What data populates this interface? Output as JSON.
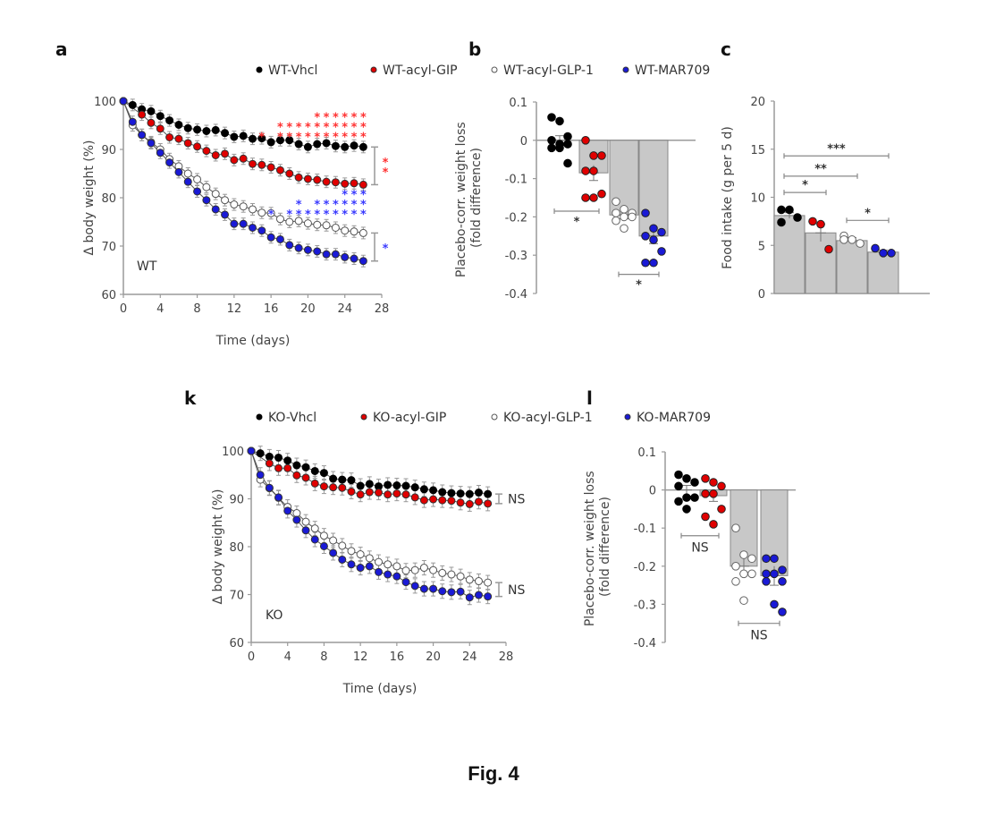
{
  "figure": {
    "caption": "Fig. 4",
    "colors": {
      "vhcl": "#000000",
      "gip": "#e00000",
      "glp1": "#ffffff",
      "mar709": "#1a1ad6",
      "sig_red": "#ff3030",
      "sig_blue": "#3a3aff",
      "bar": "#c8c8c8",
      "axis": "#9a9a9a"
    }
  },
  "chart_data": [
    {
      "id": "a",
      "panel_letter": "a",
      "type": "line",
      "title": "",
      "inset_label": "WT",
      "xlabel": "Time (days)",
      "ylabel": "Δ body weight (%)",
      "xlim": [
        0,
        28
      ],
      "ylim": [
        60,
        100
      ],
      "xticks": [
        "0",
        "4",
        "8",
        "12",
        "16",
        "20",
        "24",
        "28"
      ],
      "yticks": [
        "60",
        "70",
        "80",
        "90",
        "100"
      ],
      "legend": [
        "WT-Vhcl",
        "WT-acyl-GIP",
        "WT-acyl-GLP-1",
        "WT-MAR709"
      ],
      "legend_position": "top",
      "x": [
        0,
        1,
        2,
        3,
        4,
        5,
        6,
        7,
        8,
        9,
        10,
        11,
        12,
        13,
        14,
        15,
        16,
        17,
        18,
        19,
        20,
        21,
        22,
        23,
        24,
        25,
        26
      ],
      "series": [
        {
          "name": "WT-Vhcl",
          "key": "vhcl",
          "values": [
            100,
            99.2,
            98.3,
            97.9,
            96.9,
            96.0,
            95.1,
            94.4,
            94.1,
            93.8,
            94.0,
            93.4,
            92.6,
            92.8,
            92.2,
            92.3,
            91.5,
            91.9,
            91.9,
            91.1,
            90.5,
            91.1,
            91.3,
            90.7,
            90.5,
            90.8,
            90.5
          ]
        },
        {
          "name": "WT-acyl-GIP",
          "key": "gip",
          "values": [
            100,
            null,
            97.2,
            95.5,
            94.3,
            92.5,
            92.2,
            91.3,
            90.6,
            89.7,
            88.8,
            89.1,
            87.8,
            88.1,
            87.0,
            86.8,
            86.3,
            85.7,
            85.0,
            84.2,
            83.9,
            83.7,
            83.3,
            83.2,
            82.9,
            83.0,
            82.7
          ]
        },
        {
          "name": "WT-acyl-GLP-1",
          "key": "glp1",
          "values": [
            100,
            95.0,
            93.0,
            91.5,
            90.0,
            88.0,
            86.5,
            85.0,
            83.8,
            82.2,
            80.8,
            79.5,
            78.6,
            78.2,
            77.6,
            76.9,
            76.8,
            75.6,
            75.0,
            75.2,
            74.7,
            74.4,
            74.3,
            73.8,
            73.2,
            73.0,
            72.7
          ]
        },
        {
          "name": "WT-MAR709",
          "key": "mar709",
          "values": [
            100,
            95.7,
            93.0,
            91.3,
            89.3,
            87.3,
            85.3,
            83.3,
            81.3,
            79.5,
            77.6,
            76.5,
            74.6,
            74.6,
            73.8,
            73.2,
            71.8,
            71.4,
            70.2,
            69.6,
            69.2,
            68.9,
            68.3,
            68.3,
            67.7,
            67.4,
            66.9
          ]
        }
      ],
      "error_bar": 1.2,
      "annotations": [
        {
          "type": "stars",
          "color": "red",
          "label": "*",
          "stack": [
            [
              15,
              1
            ],
            [
              17,
              2
            ],
            [
              18,
              2
            ],
            [
              19,
              2
            ],
            [
              20,
              2
            ],
            [
              21,
              3
            ],
            [
              22,
              3
            ],
            [
              23,
              3
            ],
            [
              24,
              3
            ],
            [
              25,
              3
            ],
            [
              26,
              3
            ]
          ]
        },
        {
          "type": "stars",
          "color": "blue",
          "label": "*",
          "stack": [
            [
              16,
              1
            ],
            [
              18,
              1
            ],
            [
              19,
              2
            ],
            [
              20,
              1
            ],
            [
              21,
              2
            ],
            [
              22,
              2
            ],
            [
              23,
              2
            ],
            [
              24,
              3
            ],
            [
              25,
              3
            ],
            [
              26,
              3
            ]
          ]
        },
        {
          "type": "bracket",
          "label": "**",
          "color": "red",
          "from": 90.5,
          "to": 82.7
        },
        {
          "type": "bracket",
          "label": "*",
          "color": "blue",
          "from": 72.7,
          "to": 66.9
        }
      ]
    },
    {
      "id": "b",
      "panel_letter": "b",
      "type": "bar",
      "ylabel": "Placebo-corr. weight loss (fold difference)",
      "ylim": [
        -0.4,
        0.1
      ],
      "yticks": [
        "0.1",
        "0",
        "-0.1",
        "-0.2",
        "-0.3",
        "-0.4"
      ],
      "categories": [
        "WT-Vhcl",
        "WT-acyl-GIP",
        "WT-acyl-GLP-1",
        "WT-MAR709"
      ],
      "values": [
        0.0,
        -0.085,
        -0.195,
        -0.25
      ],
      "sem": [
        0.012,
        0.02,
        0.01,
        0.02
      ],
      "points": [
        [
          0.06,
          0.05,
          0.01,
          0.0,
          -0.01,
          -0.01,
          -0.02,
          -0.02,
          -0.06
        ],
        [
          0.0,
          -0.04,
          -0.04,
          -0.08,
          -0.08,
          -0.14,
          -0.15,
          -0.15
        ],
        [
          -0.16,
          -0.18,
          -0.19,
          -0.19,
          -0.2,
          -0.2,
          -0.21,
          -0.23
        ],
        [
          -0.19,
          -0.23,
          -0.24,
          -0.25,
          -0.26,
          -0.29,
          -0.32,
          -0.32
        ]
      ],
      "comparisons": [
        {
          "from": 0,
          "to": 1,
          "label": "*",
          "y": -0.185
        },
        {
          "from": 2,
          "to": 3,
          "label": "*",
          "y": -0.35
        }
      ]
    },
    {
      "id": "c",
      "panel_letter": "c",
      "type": "bar",
      "ylabel": "Food intake (g per 5 d)",
      "ylim": [
        0,
        20
      ],
      "yticks": [
        "0",
        "5",
        "10",
        "15",
        "20"
      ],
      "categories": [
        "WT-Vhcl",
        "WT-acyl-GIP",
        "WT-acyl-GLP-1",
        "WT-MAR709"
      ],
      "values": [
        8.1,
        6.3,
        5.5,
        4.3
      ],
      "sem": [
        0.3,
        0.9,
        0.3,
        0.2
      ],
      "points": [
        [
          8.7,
          8.7,
          7.9,
          7.4
        ],
        [
          7.5,
          7.2,
          4.6
        ],
        [
          6.0,
          5.6,
          5.2,
          5.6
        ],
        [
          4.7,
          4.2,
          4.2
        ]
      ],
      "comparisons": [
        {
          "from": 0,
          "to": 1,
          "label": "*",
          "y": 10.5
        },
        {
          "from": 0,
          "to": 2,
          "label": "**",
          "y": 12.2
        },
        {
          "from": 0,
          "to": 3,
          "label": "***",
          "y": 14.3
        },
        {
          "from": 2,
          "to": 3,
          "label": "*",
          "y": 7.6
        }
      ]
    },
    {
      "id": "k",
      "panel_letter": "k",
      "type": "line",
      "inset_label": "KO",
      "xlabel": "Time (days)",
      "ylabel": "Δ body weight (%)",
      "xlim": [
        0,
        28
      ],
      "ylim": [
        60,
        100
      ],
      "xticks": [
        "0",
        "4",
        "8",
        "12",
        "16",
        "20",
        "24",
        "28"
      ],
      "yticks": [
        "60",
        "70",
        "80",
        "90",
        "100"
      ],
      "legend": [
        "KO-Vhcl",
        "KO-acyl-GIP",
        "KO-acyl-GLP-1",
        "KO-MAR709"
      ],
      "legend_position": "top",
      "x": [
        0,
        1,
        2,
        3,
        4,
        5,
        6,
        7,
        8,
        9,
        10,
        11,
        12,
        13,
        14,
        15,
        16,
        17,
        18,
        19,
        20,
        21,
        22,
        23,
        24,
        25,
        26
      ],
      "series": [
        {
          "name": "KO-Vhcl",
          "key": "vhcl",
          "values": [
            100,
            99.5,
            98.8,
            98.6,
            98.0,
            97.0,
            96.6,
            95.8,
            95.4,
            94.2,
            94.0,
            93.9,
            92.7,
            93.1,
            92.6,
            92.9,
            92.8,
            92.7,
            92.4,
            92.0,
            91.8,
            91.4,
            91.2,
            91.1,
            91.0,
            91.3,
            91.0
          ]
        },
        {
          "name": "KO-acyl-GIP",
          "key": "gip",
          "values": [
            100,
            null,
            97.4,
            96.4,
            96.4,
            94.9,
            94.4,
            93.2,
            92.6,
            92.4,
            92.3,
            91.5,
            90.9,
            91.4,
            91.3,
            90.9,
            91.1,
            90.9,
            90.3,
            89.7,
            89.9,
            89.7,
            89.6,
            89.2,
            88.9,
            89.4,
            89.0
          ]
        },
        {
          "name": "KO-acyl-GLP-1",
          "key": "glp1",
          "values": [
            100,
            94.0,
            92.2,
            90.2,
            88.3,
            87.0,
            85.2,
            83.8,
            82.3,
            81.3,
            80.2,
            79.1,
            78.4,
            77.6,
            76.8,
            76.3,
            75.9,
            75.0,
            75.1,
            75.6,
            75.1,
            74.5,
            74.2,
            73.8,
            73.1,
            72.8,
            72.5
          ]
        },
        {
          "name": "KO-MAR709",
          "key": "mar709",
          "values": [
            100,
            95.0,
            92.3,
            90.3,
            87.5,
            85.6,
            83.4,
            81.5,
            80.1,
            78.7,
            77.3,
            76.3,
            75.6,
            75.9,
            74.7,
            74.2,
            73.8,
            72.6,
            71.8,
            71.2,
            71.2,
            70.7,
            70.5,
            70.6,
            69.4,
            69.9,
            69.6
          ]
        }
      ],
      "error_bar": 1.5,
      "annotations": [
        {
          "type": "bracket",
          "label": "NS",
          "from": 91.0,
          "to": 89.0
        },
        {
          "type": "bracket",
          "label": "NS",
          "from": 72.5,
          "to": 69.6
        }
      ]
    },
    {
      "id": "l",
      "panel_letter": "l",
      "type": "bar",
      "ylabel": "Placebo-corr. weight loss (fold difference)",
      "ylim": [
        -0.4,
        0.1
      ],
      "yticks": [
        "0.1",
        "0",
        "-0.1",
        "-0.2",
        "-0.3",
        "-0.4"
      ],
      "categories": [
        "KO-Vhcl",
        "KO-acyl-GIP",
        "KO-acyl-GLP-1",
        "KO-MAR709"
      ],
      "values": [
        0.0,
        -0.015,
        -0.2,
        -0.225
      ],
      "sem": [
        0.012,
        0.015,
        0.02,
        0.025
      ],
      "points": [
        [
          0.04,
          0.03,
          0.02,
          0.01,
          -0.02,
          -0.02,
          -0.03,
          -0.05
        ],
        [
          0.03,
          0.02,
          0.01,
          -0.01,
          -0.01,
          -0.05,
          -0.07,
          -0.09
        ],
        [
          -0.1,
          -0.17,
          -0.18,
          -0.2,
          -0.22,
          -0.22,
          -0.24,
          -0.29
        ],
        [
          -0.18,
          -0.18,
          -0.21,
          -0.22,
          -0.22,
          -0.24,
          -0.24,
          -0.3,
          -0.32
        ]
      ],
      "comparisons": [
        {
          "from": 0,
          "to": 1,
          "label": "NS",
          "y": -0.12
        },
        {
          "from": 2,
          "to": 3,
          "label": "NS",
          "y": -0.35
        }
      ]
    }
  ]
}
